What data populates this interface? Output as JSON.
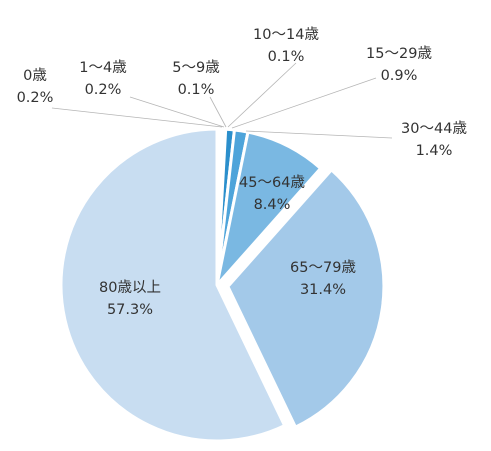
{
  "chart_data": {
    "type": "pie",
    "title": "",
    "start_angle_deg": 0,
    "direction": "clockwise",
    "slices": [
      {
        "category": "0歳",
        "value": 0.2,
        "value_label": "0.2%",
        "color": "#1a70b0"
      },
      {
        "category": "1〜4歳",
        "value": 0.2,
        "value_label": "0.2%",
        "color": "#1e7dbf"
      },
      {
        "category": "5〜9歳",
        "value": 0.1,
        "value_label": "0.1%",
        "color": "#2a8bcb"
      },
      {
        "category": "10〜14歳",
        "value": 0.1,
        "value_label": "0.1%",
        "color": "#3596d3"
      },
      {
        "category": "15〜29歳",
        "value": 0.9,
        "value_label": "0.9%",
        "color": "#2b8fcc"
      },
      {
        "category": "30〜44歳",
        "value": 1.4,
        "value_label": "1.4%",
        "color": "#4ea4da"
      },
      {
        "category": "45〜64歳",
        "value": 8.4,
        "value_label": "8.4%",
        "color": "#7ab8e2"
      },
      {
        "category": "65〜79歳",
        "value": 31.4,
        "value_label": "31.4%",
        "color": "#a3c9e9"
      },
      {
        "category": "80歳以上",
        "value": 57.3,
        "value_label": "57.3%",
        "color": "#c8ddf1"
      }
    ],
    "legend": "none"
  }
}
